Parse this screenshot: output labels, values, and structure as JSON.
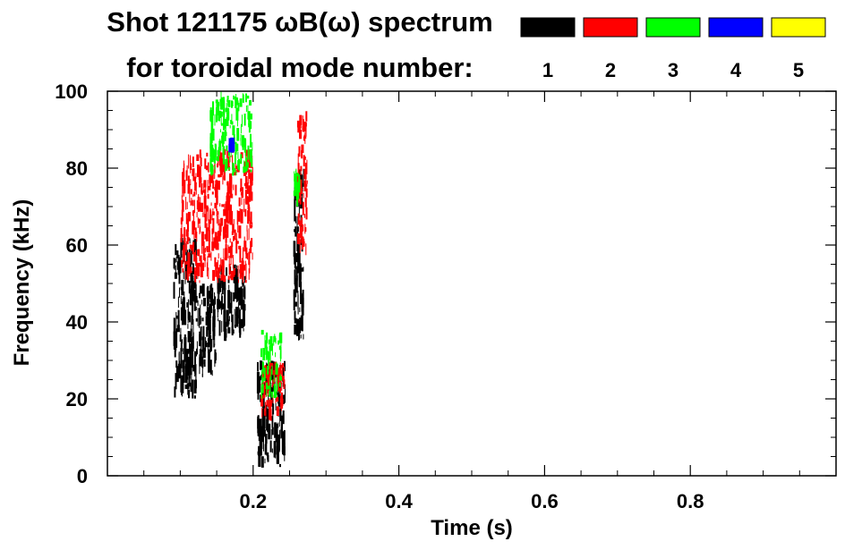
{
  "chart_data": {
    "type": "heatmap",
    "title": "Shot 121175 ωB(ω) spectrum",
    "subtitle": "for toroidal mode number:",
    "xlabel": "Time (s)",
    "ylabel": "Frequency (kHz)",
    "xlim": [
      0.0,
      1.0
    ],
    "ylim": [
      0,
      100
    ],
    "x_ticks": [
      0.2,
      0.4,
      0.6,
      0.8
    ],
    "x_tick_labels": [
      "0.2",
      "0.4",
      "0.6",
      "0.8"
    ],
    "y_ticks": [
      0,
      20,
      40,
      60,
      80,
      100
    ],
    "y_tick_labels": [
      "0",
      "20",
      "40",
      "60",
      "80",
      "100"
    ],
    "legend": {
      "placement": "top-right",
      "entries": [
        {
          "label": "1",
          "color": "#000000"
        },
        {
          "label": "2",
          "color": "#ff0000"
        },
        {
          "label": "3",
          "color": "#00ff00"
        },
        {
          "label": "4",
          "color": "#0000ff"
        },
        {
          "label": "5",
          "color": "#ffff00"
        }
      ]
    },
    "series": [
      {
        "mode": 1,
        "color": "#000000",
        "regions": [
          {
            "t": [
              0.09,
              0.125
            ],
            "f": [
              20,
              62
            ]
          },
          {
            "t": [
              0.125,
              0.15
            ],
            "f": [
              25,
              50
            ]
          },
          {
            "t": [
              0.15,
              0.19
            ],
            "f": [
              35,
              55
            ]
          },
          {
            "t": [
              0.205,
              0.245
            ],
            "f": [
              2,
              30
            ]
          },
          {
            "t": [
              0.255,
              0.27
            ],
            "f": [
              35,
              80
            ]
          }
        ]
      },
      {
        "mode": 2,
        "color": "#ff0000",
        "regions": [
          {
            "t": [
              0.1,
              0.2
            ],
            "f": [
              50,
              85
            ]
          },
          {
            "t": [
              0.21,
              0.245
            ],
            "f": [
              14,
              30
            ]
          },
          {
            "t": [
              0.26,
              0.275
            ],
            "f": [
              57,
              95
            ]
          }
        ]
      },
      {
        "mode": 3,
        "color": "#00ff00",
        "regions": [
          {
            "t": [
              0.14,
              0.2
            ],
            "f": [
              78,
              100
            ]
          },
          {
            "t": [
              0.21,
              0.24
            ],
            "f": [
              20,
              38
            ]
          },
          {
            "t": [
              0.255,
              0.265
            ],
            "f": [
              70,
              80
            ]
          }
        ]
      },
      {
        "mode": 4,
        "color": "#0000ff",
        "regions": [
          {
            "t": [
              0.165,
              0.175
            ],
            "f": [
              84,
              88
            ]
          }
        ]
      }
    ]
  }
}
